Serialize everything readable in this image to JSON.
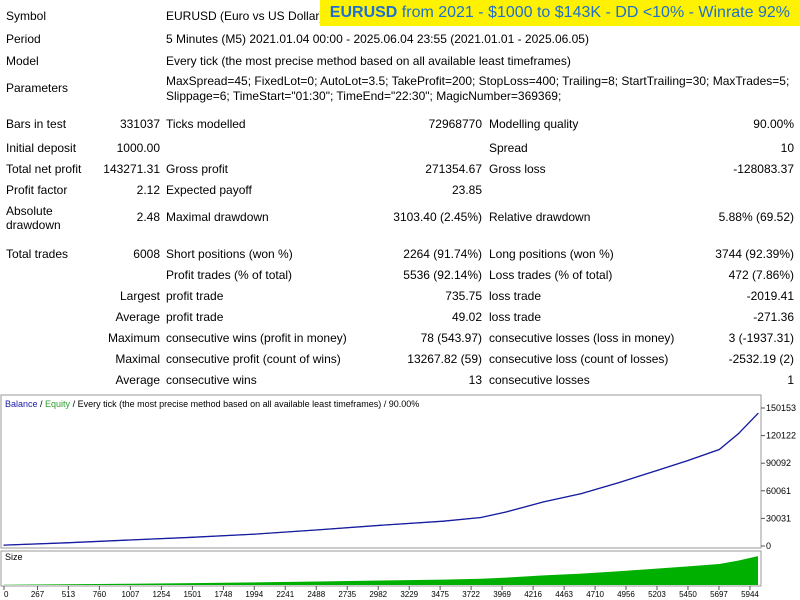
{
  "banner": {
    "symbol": "EURUSD",
    "rest": " from 2021 - $1000 to $143K - DD <10% - Winrate 92%"
  },
  "header": {
    "symbol_label": "Symbol",
    "symbol_value": "EURUSD (Euro vs US Dollar)",
    "period_label": "Period",
    "period_value": "5 Minutes (M5) 2021.01.04 00:00 - 2025.06.04 23:55 (2021.01.01 - 2025.06.05)",
    "model_label": "Model",
    "model_value": "Every tick (the most precise method based on all available least timeframes)",
    "parameters_label": "Parameters",
    "parameters_line1": "MaxSpread=45; FixedLot=0; AutoLot=3.5; TakeProfit=200; StopLoss=400; Trailing=8; StartTrailing=30; MaxTrades=5;",
    "parameters_line2": "Slippage=6; TimeStart=\"01:30\"; TimeEnd=\"22:30\"; MagicNumber=369369;"
  },
  "stats": {
    "bars_label": "Bars in test",
    "bars_value": "331037",
    "ticks_label": "Ticks modelled",
    "ticks_value": "72968770",
    "quality_label": "Modelling quality",
    "quality_value": "90.00%",
    "deposit_label": "Initial deposit",
    "deposit_value": "1000.00",
    "spread_label": "Spread",
    "spread_value": "10",
    "netprofit_label": "Total net profit",
    "netprofit_value": "143271.31",
    "grossprofit_label": "Gross profit",
    "grossprofit_value": "271354.67",
    "grossloss_label": "Gross loss",
    "grossloss_value": "-128083.37",
    "pf_label": "Profit factor",
    "pf_value": "2.12",
    "payoff_label": "Expected payoff",
    "payoff_value": "23.85",
    "absdd_label_1": "Absolute",
    "absdd_label_2": "drawdown",
    "absdd_value": "2.48",
    "maxdd_label": "Maximal drawdown",
    "maxdd_value": "3103.40 (2.45%)",
    "reldd_label": "Relative drawdown",
    "reldd_value": "5.88% (69.52)",
    "trades_label": "Total trades",
    "trades_value": "6008",
    "short_label": "Short positions (won %)",
    "short_value": "2264 (91.74%)",
    "long_label": "Long positions (won %)",
    "long_value": "3744 (92.39%)",
    "profittrades_label": "Profit trades (% of total)",
    "profittrades_value": "5536 (92.14%)",
    "losstrades_label": "Loss trades (% of total)",
    "losstrades_value": "472 (7.86%)",
    "largest_label": "Largest",
    "largest_profit_label": "profit trade",
    "largest_profit_value": "735.75",
    "largest_loss_label": "loss trade",
    "largest_loss_value": "-2019.41",
    "average_label": "Average",
    "average_profit_label": "profit trade",
    "average_profit_value": "49.02",
    "average_loss_label": "loss trade",
    "average_loss_value": "-271.36",
    "maximum_label": "Maximum",
    "max_wins_label": "consecutive wins (profit in money)",
    "max_wins_value": "78 (543.97)",
    "max_losses_label": "consecutive losses (loss in money)",
    "max_losses_value": "3 (-1937.31)",
    "maximal_label": "Maximal",
    "maximal_profit_label": "consecutive profit (count of wins)",
    "maximal_profit_value": "13267.82 (59)",
    "maximal_loss_label": "consecutive loss (count of losses)",
    "maximal_loss_value": "-2532.19 (2)",
    "avg_consec_label": "Average",
    "avg_wins_label": "consecutive wins",
    "avg_wins_value": "13",
    "avg_losses_label": "consecutive losses",
    "avg_losses_value": "1"
  },
  "chart_legend": {
    "balance": "Balance",
    "sep1": " / ",
    "equity": "Equity",
    "rest": " / Every tick (the most precise method based on all available least timeframes) / 90.00%"
  },
  "size_label": "Size",
  "colors": {
    "balance": "#1a1aa6",
    "equity": "#2ca02c",
    "size": "#00b000",
    "banner_bg": "#fff200",
    "banner_text": "#1e6fd0"
  },
  "chart_data": {
    "type": "line",
    "title": "",
    "y_ticks": [
      "150153",
      "120122",
      "90092",
      "60061",
      "30031",
      "0"
    ],
    "x_ticks": [
      "0",
      "267",
      "513",
      "760",
      "1007",
      "1254",
      "1501",
      "1748",
      "1994",
      "2241",
      "2488",
      "2735",
      "2982",
      "3229",
      "3475",
      "3722",
      "3969",
      "4216",
      "4463",
      "4710",
      "4956",
      "5203",
      "5450",
      "5697",
      "5944"
    ],
    "ylim": [
      0,
      150153
    ],
    "xlim": [
      0,
      6008
    ],
    "series": [
      {
        "name": "Balance",
        "x": [
          0,
          500,
          1000,
          1500,
          2000,
          2500,
          3000,
          3500,
          3800,
          4000,
          4300,
          4600,
          4900,
          5200,
          5450,
          5700,
          5850,
          6008
        ],
        "values": [
          1000,
          3500,
          6500,
          9500,
          13000,
          17500,
          22500,
          27000,
          31000,
          37000,
          48000,
          57000,
          69000,
          82000,
          93000,
          105000,
          122000,
          144271
        ]
      }
    ]
  }
}
